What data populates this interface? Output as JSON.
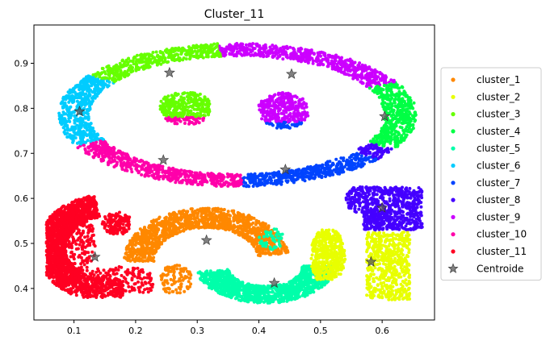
{
  "chart_data": {
    "type": "scatter",
    "title": "Cluster_11",
    "xlabel": "",
    "ylabel": "",
    "xlim": [
      0.035,
      0.685
    ],
    "ylim": [
      0.33,
      0.985
    ],
    "xticks": [
      0.1,
      0.2,
      0.3,
      0.4,
      0.5,
      0.6
    ],
    "yticks": [
      0.4,
      0.5,
      0.6,
      0.7,
      0.8,
      0.9
    ],
    "xtick_labels": [
      "0.1",
      "0.2",
      "0.3",
      "0.4",
      "0.5",
      "0.6"
    ],
    "ytick_labels": [
      "0.4",
      "0.5",
      "0.6",
      "0.7",
      "0.8",
      "0.9"
    ],
    "grid": false,
    "legend_position": "center-right",
    "series": [
      {
        "name": "cluster_1",
        "color": "#ff8800"
      },
      {
        "name": "cluster_2",
        "color": "#e8ff00"
      },
      {
        "name": "cluster_3",
        "color": "#66ff00"
      },
      {
        "name": "cluster_4",
        "color": "#00ff44"
      },
      {
        "name": "cluster_5",
        "color": "#00ffaa"
      },
      {
        "name": "cluster_6",
        "color": "#00ccff"
      },
      {
        "name": "cluster_7",
        "color": "#0044ff"
      },
      {
        "name": "cluster_8",
        "color": "#4400ff"
      },
      {
        "name": "cluster_9",
        "color": "#cc00ff"
      },
      {
        "name": "cluster_10",
        "color": "#ff00aa"
      },
      {
        "name": "cluster_11",
        "color": "#ff0022"
      }
    ],
    "centroid_label": "Centroide",
    "centroid_color": "#555555",
    "centroids": [
      {
        "cluster": "cluster_1",
        "x": 0.315,
        "y": 0.507
      },
      {
        "cluster": "cluster_2",
        "x": 0.582,
        "y": 0.459
      },
      {
        "cluster": "cluster_3",
        "x": 0.255,
        "y": 0.879
      },
      {
        "cluster": "cluster_4",
        "x": 0.604,
        "y": 0.782
      },
      {
        "cluster": "cluster_5",
        "x": 0.425,
        "y": 0.412
      },
      {
        "cluster": "cluster_6",
        "x": 0.109,
        "y": 0.793
      },
      {
        "cluster": "cluster_7",
        "x": 0.443,
        "y": 0.664
      },
      {
        "cluster": "cluster_8",
        "x": 0.6,
        "y": 0.579
      },
      {
        "cluster": "cluster_9",
        "x": 0.453,
        "y": 0.876
      },
      {
        "cluster": "cluster_10",
        "x": 0.245,
        "y": 0.685
      },
      {
        "cluster": "cluster_11",
        "x": 0.134,
        "y": 0.47
      }
    ]
  }
}
